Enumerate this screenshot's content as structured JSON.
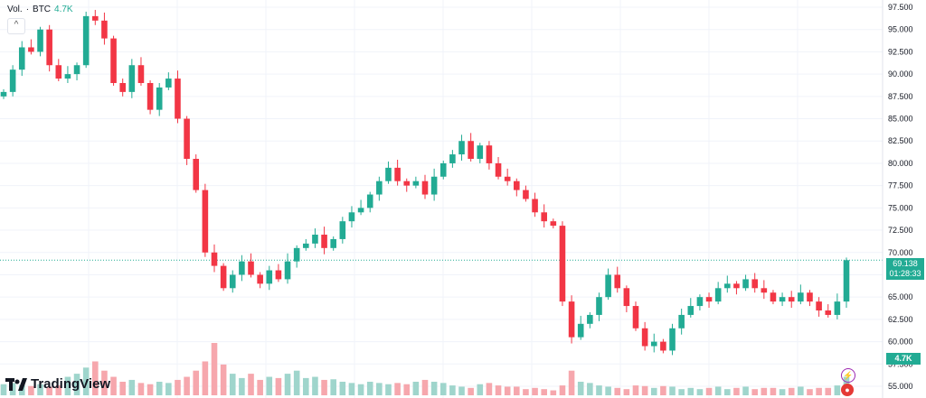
{
  "legend": {
    "label": "Vol.",
    "sep": "·",
    "symbol": "BTC",
    "value": "4.7K"
  },
  "current_price": {
    "price": "69.138",
    "countdown": "01:28:33"
  },
  "volume_tag": "4.7K",
  "logo_text": "TradingView",
  "colors": {
    "up": "#22ab94",
    "down": "#f23645",
    "vol_up": "#9fd5cc",
    "vol_down": "#f6a7ad"
  },
  "chart_data": {
    "type": "candlestick",
    "y_ticks": [
      "97.500",
      "95.000",
      "92.500",
      "90.000",
      "87.500",
      "85.000",
      "82.500",
      "80.000",
      "77.500",
      "75.000",
      "72.500",
      "70.000",
      "67.500",
      "65.000",
      "62.500",
      "60.000",
      "57.500",
      "55.000"
    ],
    "ylim": [
      55000,
      97500
    ],
    "grid": true,
    "current_price_line": 69138,
    "closes": [
      88000,
      90500,
      93000,
      92500,
      95000,
      91000,
      89500,
      90000,
      91000,
      96500,
      96000,
      94000,
      89000,
      88000,
      91000,
      89000,
      86000,
      88500,
      89500,
      85000,
      80500,
      77000,
      70000,
      68500,
      66000,
      67500,
      69000,
      67500,
      66500,
      68000,
      67000,
      69000,
      70500,
      71000,
      72000,
      70500,
      71500,
      73500,
      74500,
      75000,
      76500,
      78000,
      79500,
      78000,
      77500,
      78000,
      76500,
      78500,
      80000,
      81000,
      82500,
      80500,
      82000,
      80000,
      78500,
      78000,
      77000,
      76000,
      74500,
      73500,
      73000,
      64500,
      60500,
      62000,
      63000,
      65000,
      67500,
      66000,
      64000,
      61500,
      59500,
      60000,
      59000,
      61500,
      63000,
      64000,
      65000,
      64500,
      66000,
      66500,
      66000,
      67000,
      66000,
      65500,
      64500,
      65000,
      64500,
      65500,
      64500,
      63500,
      63000,
      64500,
      69138
    ],
    "volumes": [
      18,
      20,
      17,
      15,
      18,
      14,
      16,
      30,
      35,
      45,
      55,
      40,
      30,
      22,
      25,
      20,
      18,
      22,
      20,
      25,
      30,
      40,
      55,
      85,
      50,
      35,
      28,
      35,
      25,
      30,
      28,
      35,
      40,
      28,
      30,
      25,
      26,
      22,
      20,
      18,
      22,
      20,
      18,
      20,
      18,
      22,
      25,
      22,
      20,
      16,
      14,
      12,
      18,
      20,
      16,
      14,
      14,
      10,
      12,
      10,
      8,
      16,
      40,
      22,
      20,
      16,
      14,
      12,
      10,
      16,
      15,
      12,
      15,
      14,
      10,
      12,
      10,
      12,
      14,
      10,
      12,
      14,
      10,
      12,
      12,
      10,
      12,
      14,
      10,
      12,
      12,
      16,
      30
    ]
  }
}
